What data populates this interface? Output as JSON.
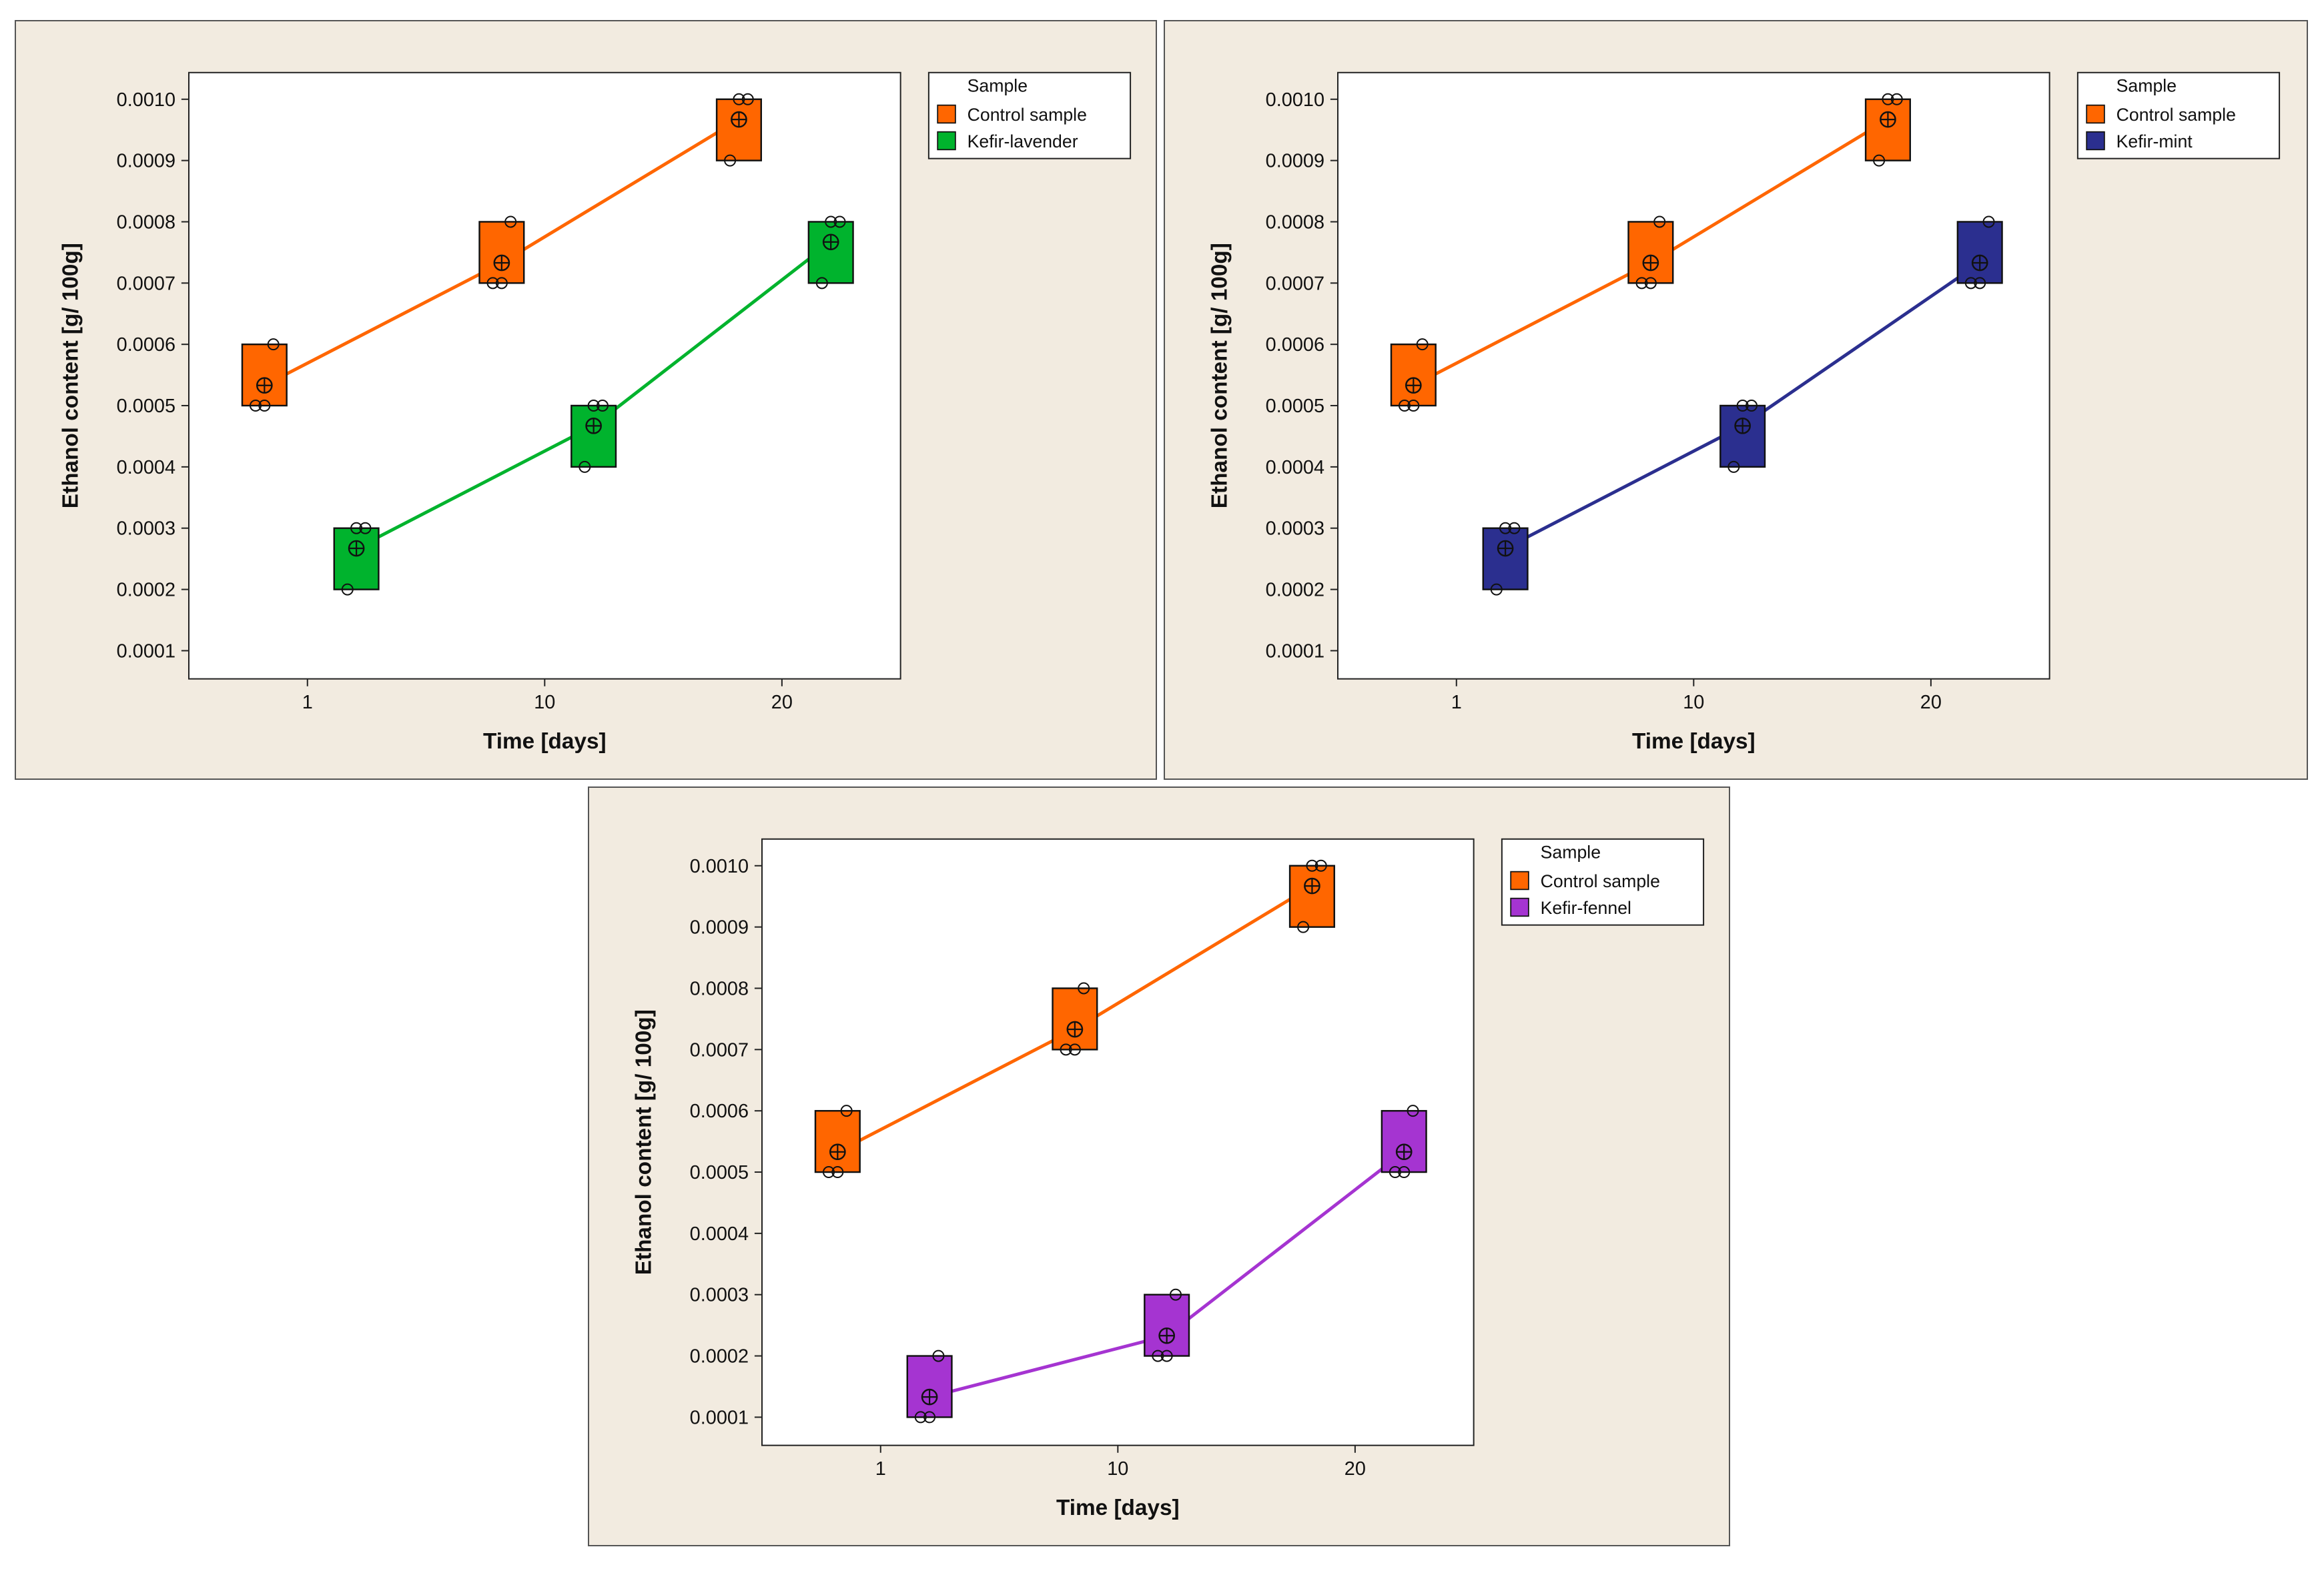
{
  "colors": {
    "panel_bg": "#f2ebe0",
    "control": "#ff6600",
    "kefir_lavender": "#00b32d",
    "kefir_mint": "#2b2f8f",
    "kefir_fennel": "#a534d1"
  },
  "chart_data": [
    {
      "type": "box",
      "xlabel": "Time [days]",
      "ylabel": "Ethanol content  [g/ 100g]",
      "x_ticks": [
        "1",
        "10",
        "20"
      ],
      "ylim": [
        0.0001,
        0.001
      ],
      "y_ticks": [
        "0.0001",
        "0.0002",
        "0.0003",
        "0.0004",
        "0.0005",
        "0.0006",
        "0.0007",
        "0.0008",
        "0.0009",
        "0.0010"
      ],
      "legend": {
        "title": "Sample",
        "position": "top-right-outside",
        "entries": [
          "Control sample",
          "Kefir-lavender"
        ]
      },
      "series": [
        {
          "name": "Control sample",
          "color": "#ff6600",
          "groups": [
            {
              "time": "1",
              "box": [
                0.0005,
                0.0006
              ],
              "mean": 0.000533,
              "points": [
                0.0005,
                0.0005,
                0.0006
              ]
            },
            {
              "time": "10",
              "box": [
                0.0007,
                0.0008
              ],
              "mean": 0.000733,
              "points": [
                0.0007,
                0.0007,
                0.0008
              ]
            },
            {
              "time": "20",
              "box": [
                0.0009,
                0.001
              ],
              "mean": 0.000967,
              "points": [
                0.0009,
                0.001,
                0.001
              ]
            }
          ]
        },
        {
          "name": "Kefir-lavender",
          "color": "#00b32d",
          "groups": [
            {
              "time": "1",
              "box": [
                0.0002,
                0.0003
              ],
              "mean": 0.000267,
              "points": [
                0.0002,
                0.0003,
                0.0003
              ]
            },
            {
              "time": "10",
              "box": [
                0.0004,
                0.0005
              ],
              "mean": 0.000467,
              "points": [
                0.0004,
                0.0005,
                0.0005
              ]
            },
            {
              "time": "20",
              "box": [
                0.0007,
                0.0008
              ],
              "mean": 0.000767,
              "points": [
                0.0007,
                0.0008,
                0.0008
              ]
            }
          ]
        }
      ]
    },
    {
      "type": "box",
      "xlabel": "Time [days]",
      "ylabel": "Ethanol content  [g/ 100g]",
      "x_ticks": [
        "1",
        "10",
        "20"
      ],
      "ylim": [
        0.0001,
        0.001
      ],
      "y_ticks": [
        "0.0001",
        "0.0002",
        "0.0003",
        "0.0004",
        "0.0005",
        "0.0006",
        "0.0007",
        "0.0008",
        "0.0009",
        "0.0010"
      ],
      "legend": {
        "title": "Sample",
        "position": "top-right-outside",
        "entries": [
          "Control sample",
          "Kefir-mint"
        ]
      },
      "series": [
        {
          "name": "Control sample",
          "color": "#ff6600",
          "groups": [
            {
              "time": "1",
              "box": [
                0.0005,
                0.0006
              ],
              "mean": 0.000533,
              "points": [
                0.0005,
                0.0005,
                0.0006
              ]
            },
            {
              "time": "10",
              "box": [
                0.0007,
                0.0008
              ],
              "mean": 0.000733,
              "points": [
                0.0007,
                0.0007,
                0.0008
              ]
            },
            {
              "time": "20",
              "box": [
                0.0009,
                0.001
              ],
              "mean": 0.000967,
              "points": [
                0.0009,
                0.001,
                0.001
              ]
            }
          ]
        },
        {
          "name": "Kefir-mint",
          "color": "#2b2f8f",
          "groups": [
            {
              "time": "1",
              "box": [
                0.0002,
                0.0003
              ],
              "mean": 0.000267,
              "points": [
                0.0002,
                0.0003,
                0.0003
              ]
            },
            {
              "time": "10",
              "box": [
                0.0004,
                0.0005
              ],
              "mean": 0.000467,
              "points": [
                0.0004,
                0.0005,
                0.0005
              ]
            },
            {
              "time": "20",
              "box": [
                0.0007,
                0.0008
              ],
              "mean": 0.000733,
              "points": [
                0.0007,
                0.0007,
                0.0008
              ]
            }
          ]
        }
      ]
    },
    {
      "type": "box",
      "xlabel": "Time [days]",
      "ylabel": "Ethanol content  [g/ 100g]",
      "x_ticks": [
        "1",
        "10",
        "20"
      ],
      "ylim": [
        0.0001,
        0.001
      ],
      "y_ticks": [
        "0.0001",
        "0.0002",
        "0.0003",
        "0.0004",
        "0.0005",
        "0.0006",
        "0.0007",
        "0.0008",
        "0.0009",
        "0.0010"
      ],
      "legend": {
        "title": "Sample",
        "position": "top-right-outside",
        "entries": [
          "Control sample",
          "Kefir-fennel"
        ]
      },
      "series": [
        {
          "name": "Control sample",
          "color": "#ff6600",
          "groups": [
            {
              "time": "1",
              "box": [
                0.0005,
                0.0006
              ],
              "mean": 0.000533,
              "points": [
                0.0005,
                0.0005,
                0.0006
              ]
            },
            {
              "time": "10",
              "box": [
                0.0007,
                0.0008
              ],
              "mean": 0.000733,
              "points": [
                0.0007,
                0.0007,
                0.0008
              ]
            },
            {
              "time": "20",
              "box": [
                0.0009,
                0.001
              ],
              "mean": 0.000967,
              "points": [
                0.0009,
                0.001,
                0.001
              ]
            }
          ]
        },
        {
          "name": "Kefir-fennel",
          "color": "#a534d1",
          "groups": [
            {
              "time": "1",
              "box": [
                0.0001,
                0.0002
              ],
              "mean": 0.000133,
              "points": [
                0.0001,
                0.0001,
                0.0002
              ]
            },
            {
              "time": "10",
              "box": [
                0.0002,
                0.0003
              ],
              "mean": 0.000233,
              "points": [
                0.0002,
                0.0002,
                0.0003
              ]
            },
            {
              "time": "20",
              "box": [
                0.0005,
                0.0006
              ],
              "mean": 0.000533,
              "points": [
                0.0005,
                0.0005,
                0.0006
              ]
            }
          ]
        }
      ]
    }
  ]
}
